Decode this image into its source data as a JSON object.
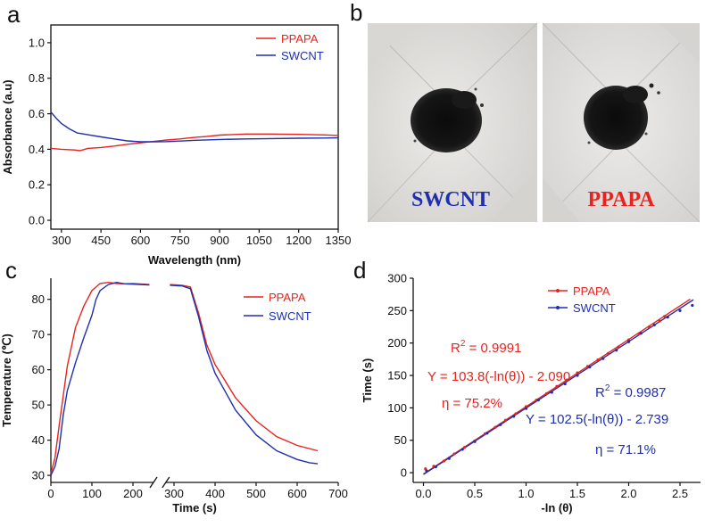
{
  "panels": {
    "a": "a",
    "b": "b",
    "c": "c",
    "d": "d"
  },
  "colors": {
    "ppapa": "#e8231d",
    "swcnt": "#1e2fb0",
    "axis": "#111111"
  },
  "photo": {
    "left_label": "SWCNT",
    "right_label": "PPAPA"
  },
  "chart_data": [
    {
      "id": "a",
      "type": "line",
      "xlabel": "Wavelength (nm)",
      "ylabel": "Absorbance (a.u)",
      "xlim": [
        260,
        1350
      ],
      "ylim": [
        -0.05,
        1.1
      ],
      "xticks": [
        300,
        450,
        600,
        750,
        900,
        1050,
        1200,
        1350
      ],
      "yticks": [
        0.0,
        0.2,
        0.4,
        0.6,
        0.8,
        1.0
      ],
      "ytick_labels": [
        "0.0",
        "0.2",
        "0.4",
        "0.6",
        "0.8",
        "1.0"
      ],
      "legend": "top-right",
      "series": [
        {
          "name": "PPAPA",
          "x": [
            260,
            300,
            350,
            370,
            400,
            450,
            500,
            550,
            600,
            650,
            700,
            750,
            800,
            850,
            900,
            1000,
            1100,
            1200,
            1300,
            1350
          ],
          "y": [
            0.405,
            0.4,
            0.396,
            0.392,
            0.405,
            0.41,
            0.418,
            0.428,
            0.436,
            0.444,
            0.452,
            0.458,
            0.466,
            0.472,
            0.48,
            0.486,
            0.486,
            0.484,
            0.481,
            0.478
          ]
        },
        {
          "name": "SWCNT",
          "x": [
            260,
            280,
            300,
            330,
            360,
            400,
            450,
            500,
            550,
            600,
            650,
            700,
            750,
            800,
            900,
            1000,
            1100,
            1200,
            1300,
            1350
          ],
          "y": [
            0.61,
            0.575,
            0.545,
            0.515,
            0.492,
            0.482,
            0.47,
            0.458,
            0.447,
            0.442,
            0.442,
            0.443,
            0.446,
            0.45,
            0.455,
            0.458,
            0.46,
            0.462,
            0.463,
            0.464
          ]
        }
      ]
    },
    {
      "id": "c",
      "type": "line",
      "xlabel": "Time (s)",
      "ylabel": "Temperature (℃)",
      "xlim": [
        0,
        700
      ],
      "ylim": [
        28,
        86
      ],
      "xticks": [
        0,
        100,
        200,
        300,
        400,
        500,
        600,
        700
      ],
      "yticks": [
        30,
        40,
        50,
        60,
        70,
        80
      ],
      "axis_break": [
        250,
        280
      ],
      "legend": "top-right",
      "series": [
        {
          "name": "PPAPA",
          "x": [
            0,
            10,
            20,
            40,
            60,
            80,
            100,
            120,
            140,
            160,
            180,
            200,
            240,
            290,
            320,
            340,
            360,
            380,
            400,
            450,
            500,
            550,
            600,
            650
          ],
          "y": [
            30.5,
            35,
            44,
            61,
            72,
            78,
            82.5,
            84.5,
            84.8,
            84.5,
            84.4,
            84.5,
            84.2,
            84.2,
            84.0,
            83.5,
            76,
            67,
            61.5,
            52,
            45.5,
            41,
            38.5,
            37
          ]
        },
        {
          "name": "SWCNT",
          "x": [
            0,
            10,
            20,
            30,
            40,
            60,
            80,
            100,
            110,
            120,
            140,
            160,
            180,
            200,
            240,
            290,
            320,
            340,
            360,
            380,
            400,
            450,
            500,
            550,
            600,
            630,
            650
          ],
          "y": [
            30,
            32.5,
            37.5,
            47,
            54,
            62,
            69,
            75.5,
            80,
            82.5,
            84.2,
            84.8,
            84.4,
            84.3,
            84.1,
            84.0,
            83.8,
            83.0,
            75,
            65.5,
            59,
            48.5,
            41.5,
            37,
            34.5,
            33.6,
            33.3
          ]
        }
      ]
    },
    {
      "id": "d",
      "type": "scatter",
      "xlabel": "-ln (θ)",
      "ylabel": "Time (s)",
      "xlim": [
        -0.1,
        2.7
      ],
      "ylim": [
        -15,
        300
      ],
      "xticks": [
        0.0,
        0.5,
        1.0,
        1.5,
        2.0,
        2.5
      ],
      "xtick_labels": [
        "0.0",
        "0.5",
        "1.0",
        "1.5",
        "2.0",
        "2.5"
      ],
      "yticks": [
        0,
        50,
        100,
        150,
        200,
        250,
        300
      ],
      "legend": "top-center",
      "annotations": {
        "ppapa_r2_base": "R",
        "ppapa_r2_sup": "2",
        "ppapa_r2_value": " = 0.9991",
        "ppapa_fit": "Y = 103.8(-ln(θ)) - 2.090",
        "ppapa_eta": "η = 75.2%",
        "swcnt_r2_base": "R",
        "swcnt_r2_sup": "2",
        "swcnt_r2_value": " = 0.9987",
        "swcnt_fit": "Y = 102.5(-ln(θ)) - 2.739",
        "swcnt_eta": "η = 71.1%"
      },
      "fits": [
        {
          "name": "PPAPA",
          "slope": 103.8,
          "intercept": -2.09,
          "x_range": [
            0.0,
            2.6
          ]
        },
        {
          "name": "SWCNT",
          "slope": 102.5,
          "intercept": -2.739,
          "x_range": [
            0.0,
            2.63
          ]
        }
      ],
      "series": [
        {
          "name": "PPAPA",
          "x": [
            0.02,
            0.1,
            0.2,
            0.3,
            0.4,
            0.5,
            0.6,
            0.7,
            0.8,
            0.9,
            1.0,
            1.1,
            1.2,
            1.3,
            1.4,
            1.5,
            1.6,
            1.7,
            1.8,
            1.9,
            2.0,
            2.1,
            2.2,
            2.3,
            2.35
          ],
          "y": [
            6,
            10,
            18,
            29,
            39,
            49,
            60,
            70,
            81,
            91,
            102,
            112,
            122,
            133,
            143,
            154,
            164,
            174,
            184,
            194,
            205,
            214,
            225,
            234,
            241
          ]
        },
        {
          "name": "SWCNT",
          "x": [
            0.03,
            0.12,
            0.25,
            0.38,
            0.5,
            0.62,
            0.75,
            0.88,
            1.0,
            1.12,
            1.25,
            1.38,
            1.5,
            1.62,
            1.75,
            1.88,
            2.0,
            2.12,
            2.25,
            2.38,
            2.5,
            2.62
          ],
          "y": [
            3,
            9,
            22,
            36,
            48,
            61,
            74,
            87,
            99,
            112,
            124,
            137,
            150,
            163,
            176,
            189,
            202,
            215,
            228,
            240,
            250,
            258
          ]
        }
      ]
    }
  ]
}
